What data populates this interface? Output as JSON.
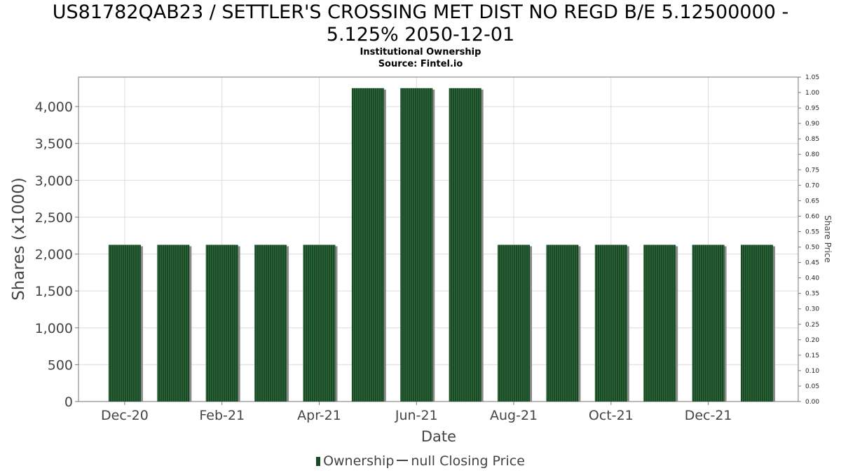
{
  "chart_data": {
    "type": "bar",
    "title": "US81782QAB23 / SETTLER'S CROSSING MET DIST NO REGD B/E 5.12500000 -\n5.125% 2050-12-01",
    "subtitle_lines": [
      "Institutional Ownership",
      "Source: Fintel.io"
    ],
    "xlabel": "Date",
    "ylabel": "Shares (x1000)",
    "y2label": "Share Price",
    "ylim": [
      0,
      4400
    ],
    "y2lim": [
      0,
      1.05
    ],
    "y_ticks": [
      "0",
      "500",
      "1,000",
      "1,500",
      "2,000",
      "2,500",
      "3,000",
      "3,500",
      "4,000"
    ],
    "y2_ticks": [
      "0.00",
      "0.05",
      "0.10",
      "0.15",
      "0.20",
      "0.25",
      "0.30",
      "0.35",
      "0.40",
      "0.45",
      "0.50",
      "0.55",
      "0.60",
      "0.65",
      "0.70",
      "0.75",
      "0.80",
      "0.85",
      "0.90",
      "0.95",
      "1.00",
      "1.05"
    ],
    "x_tick_labels": [
      "Dec-20",
      "Feb-21",
      "Apr-21",
      "Jun-21",
      "Aug-21",
      "Oct-21",
      "Dec-21"
    ],
    "categories": [
      "2020-12",
      "2021-01",
      "2021-02",
      "2021-03",
      "2021-04",
      "2021-05",
      "2021-06",
      "2021-07",
      "2021-08",
      "2021-09",
      "2021-10",
      "2021-11",
      "2021-12",
      "2022-01"
    ],
    "series": [
      {
        "name": "Ownership",
        "values": [
          2125,
          2125,
          2125,
          2125,
          2125,
          4250,
          4250,
          4250,
          2125,
          2125,
          2125,
          2125,
          2125,
          2125
        ]
      }
    ],
    "grid": true,
    "legend_position": "bottom",
    "colors": {
      "bar": "#1a4a25",
      "bar_stripe": "#2f6b3c",
      "bar_shadow": "#8a8a8a",
      "grid": "#dcdcdc",
      "axis": "#777777"
    },
    "legend": {
      "ownership_label": "Ownership",
      "price_label": "null Closing Price"
    }
  }
}
